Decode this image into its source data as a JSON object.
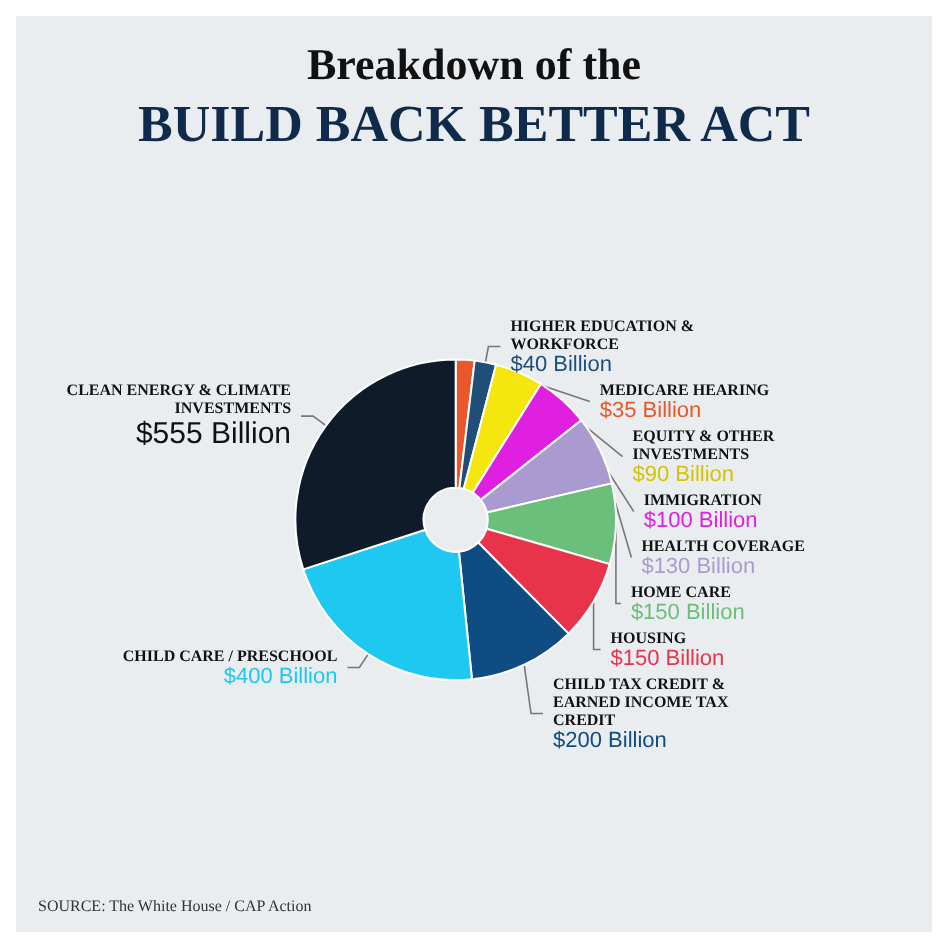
{
  "chart_data": {
    "type": "donut",
    "title": "Breakdown of the",
    "subtitle": "BUILD BACK BETTER ACT",
    "categories": [
      "MEDICARE HEARING",
      "HIGHER EDUCATION & WORKFORCE",
      "EQUITY & OTHER INVESTMENTS",
      "IMMIGRATION",
      "HEALTH COVERAGE",
      "HOME CARE",
      "HOUSING",
      "CHILD TAX CREDIT & EARNED INCOME TAX CREDIT",
      "CHILD CARE / PRESCHOOL",
      "CLEAN ENERGY & CLIMATE INVESTMENTS"
    ],
    "values": [
      35,
      40,
      90,
      100,
      130,
      150,
      150,
      200,
      400,
      555
    ],
    "value_labels": [
      "$35 Billion",
      "$40 Billion",
      "$90 Billion",
      "$100 Billion",
      "$130 Billion",
      "$150 Billion",
      "$150 Billion",
      "$200 Billion",
      "$400 Billion",
      "$555 Billion"
    ],
    "colors": [
      "#e8582a",
      "#1f4e79",
      "#f5e60f",
      "#e020e0",
      "#a99bd0",
      "#6cbf7a",
      "#e8334a",
      "#0f4c81",
      "#1ec8f0",
      "#0d1b2a"
    ],
    "legend": false,
    "annotations": [
      "SOURCE: The White House / CAP Action"
    ]
  }
}
